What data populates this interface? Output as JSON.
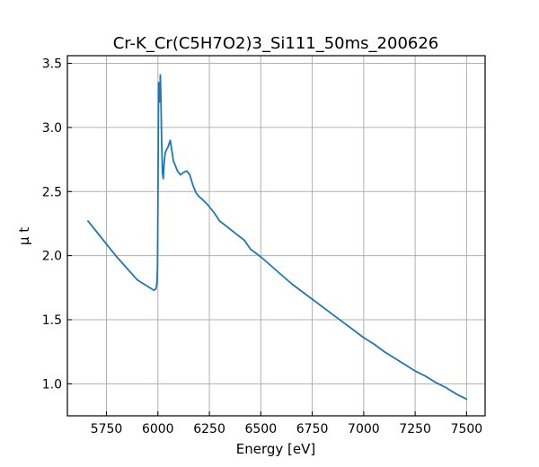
{
  "chart_data": {
    "type": "line",
    "title": "Cr-K_Cr(C5H7O2)3_Si111_50ms_200626",
    "xlabel": "Energy [eV]",
    "ylabel": "μ t",
    "xlim": [
      5560,
      7590
    ],
    "ylim": [
      0.75,
      3.56
    ],
    "xticks": [
      5750,
      6000,
      6250,
      6500,
      6750,
      7000,
      7250,
      7500
    ],
    "yticks": [
      1.0,
      1.5,
      2.0,
      2.5,
      3.0,
      3.5
    ],
    "xtick_labels": [
      "5750",
      "6000",
      "6250",
      "6500",
      "6750",
      "7000",
      "7250",
      "7500"
    ],
    "ytick_labels": [
      "1.0",
      "1.5",
      "2.0",
      "2.5",
      "3.0",
      "3.5"
    ],
    "grid": true,
    "line_color": "#1f77b4",
    "series": [
      {
        "x": [
          5660,
          5700,
          5750,
          5800,
          5850,
          5900,
          5950,
          5980,
          5990,
          5995,
          5998,
          6000,
          6003,
          6006,
          6009,
          6012,
          6015,
          6018,
          6022,
          6026,
          6030,
          6035,
          6040,
          6050,
          6060,
          6075,
          6085,
          6095,
          6110,
          6125,
          6140,
          6155,
          6170,
          6185,
          6200,
          6215,
          6240,
          6275,
          6300,
          6340,
          6380,
          6420,
          6450,
          6500,
          6550,
          6600,
          6650,
          6700,
          6750,
          6800,
          6850,
          6900,
          6950,
          7000,
          7050,
          7100,
          7150,
          7200,
          7250,
          7300,
          7350,
          7400,
          7450,
          7500
        ],
        "y": [
          2.27,
          2.19,
          2.09,
          1.99,
          1.9,
          1.81,
          1.76,
          1.73,
          1.74,
          1.78,
          1.9,
          2.4,
          3.35,
          3.3,
          3.2,
          3.41,
          3.2,
          2.9,
          2.65,
          2.6,
          2.72,
          2.8,
          2.82,
          2.85,
          2.9,
          2.74,
          2.7,
          2.66,
          2.63,
          2.65,
          2.66,
          2.63,
          2.55,
          2.49,
          2.46,
          2.44,
          2.4,
          2.33,
          2.27,
          2.22,
          2.17,
          2.12,
          2.05,
          1.99,
          1.92,
          1.85,
          1.78,
          1.72,
          1.66,
          1.6,
          1.54,
          1.48,
          1.42,
          1.36,
          1.31,
          1.25,
          1.2,
          1.15,
          1.1,
          1.06,
          1.01,
          0.97,
          0.92,
          0.88
        ]
      }
    ]
  }
}
